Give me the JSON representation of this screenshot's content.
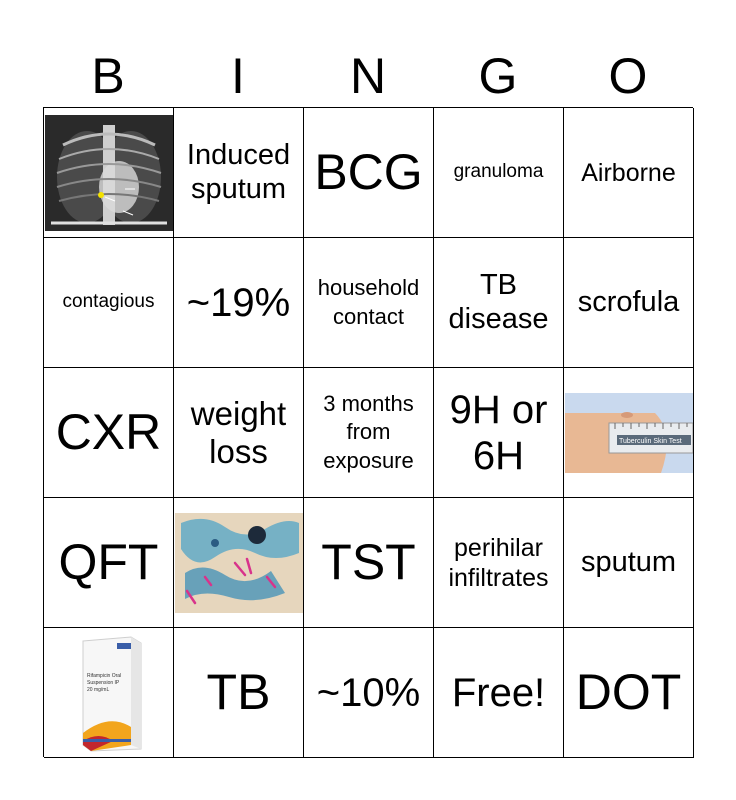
{
  "header": [
    "B",
    "I",
    "N",
    "G",
    "O"
  ],
  "cells": [
    {
      "type": "image",
      "icon": "chest-xray-image"
    },
    {
      "type": "text",
      "text": "Induced\nsputum",
      "size": "fs-ml"
    },
    {
      "type": "text",
      "text": "BCG",
      "size": "fs-xl"
    },
    {
      "type": "text",
      "text": "granuloma",
      "size": "fs-xxs"
    },
    {
      "type": "text",
      "text": "Airborne",
      "size": "fs-sm"
    },
    {
      "type": "text",
      "text": "contagious",
      "size": "fs-xxs"
    },
    {
      "type": "text",
      "text": "~19%",
      "size": "fs-lg"
    },
    {
      "type": "text",
      "text": "household\ncontact",
      "size": "fs-xs"
    },
    {
      "type": "text",
      "text": "TB\ndisease",
      "size": "fs-ml"
    },
    {
      "type": "text",
      "text": "scrofula",
      "size": "fs-ml"
    },
    {
      "type": "text",
      "text": "CXR",
      "size": "fs-xl"
    },
    {
      "type": "text",
      "text": "weight\nloss",
      "size": "fs-md"
    },
    {
      "type": "text",
      "text": "3 months\nfrom\nexposure",
      "size": "fs-xs"
    },
    {
      "type": "text",
      "text": "9H or\n6H",
      "size": "fs-lg"
    },
    {
      "type": "image",
      "icon": "tuberculin-skin-test-image",
      "caption": "Tuberculin Skin Test"
    },
    {
      "type": "text",
      "text": "QFT",
      "size": "fs-xl"
    },
    {
      "type": "image",
      "icon": "acid-fast-smear-image"
    },
    {
      "type": "text",
      "text": "TST",
      "size": "fs-xl"
    },
    {
      "type": "text",
      "text": "perihilar\ninfiltrates",
      "size": "fs-sm"
    },
    {
      "type": "text",
      "text": "sputum",
      "size": "fs-ml"
    },
    {
      "type": "image",
      "icon": "rifampicin-suspension-box-image",
      "caption": "Rifampicin Oral\nSuspension IP\n20 mg/mL"
    },
    {
      "type": "text",
      "text": "TB",
      "size": "fs-xl"
    },
    {
      "type": "text",
      "text": "~10%",
      "size": "fs-lg"
    },
    {
      "type": "text",
      "text": "Free!",
      "size": "fs-lg"
    },
    {
      "type": "text",
      "text": "DOT",
      "size": "fs-xl"
    }
  ],
  "colors": {
    "grid_line": "#000000",
    "background": "#ffffff"
  }
}
